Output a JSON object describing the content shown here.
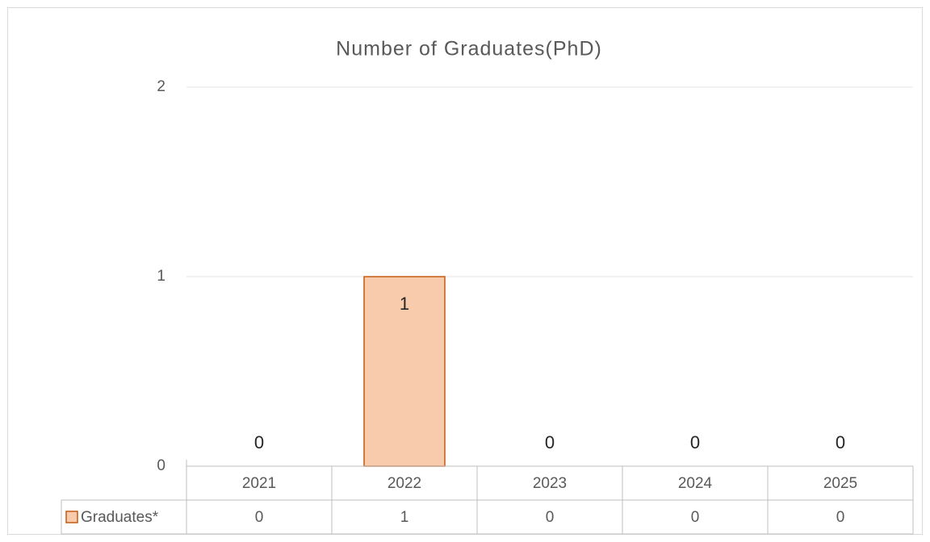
{
  "chart_data": {
    "type": "bar",
    "title": "Number of Graduates(PhD)",
    "categories": [
      "2021",
      "2022",
      "2023",
      "2024",
      "2025"
    ],
    "series": [
      {
        "name": "Graduates*",
        "color": "#f8cbad",
        "edge_color": "#c55a11",
        "values": [
          0,
          1,
          0,
          0,
          0
        ]
      }
    ],
    "ylim": [
      0,
      2
    ],
    "yticks": [
      0,
      1,
      2
    ],
    "grid": true
  }
}
